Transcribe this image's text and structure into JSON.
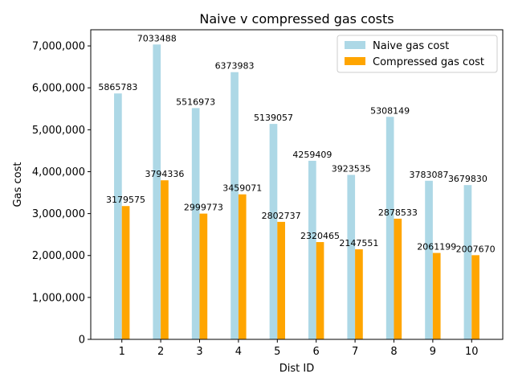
{
  "chart_data": {
    "type": "bar",
    "title": "Naive v compressed gas costs",
    "xlabel": "Dist ID",
    "ylabel": "Gas cost",
    "categories": [
      "1",
      "2",
      "3",
      "4",
      "5",
      "6",
      "7",
      "8",
      "9",
      "10"
    ],
    "series": [
      {
        "name": "Naive gas cost",
        "color": "#add8e6",
        "values": [
          5865783,
          7033488,
          5516973,
          6373983,
          5139057,
          4259409,
          3923535,
          5308149,
          3783087,
          3679830
        ],
        "labels": [
          "5865783",
          "7033488",
          "5516973",
          "6373983",
          "5139057",
          "4259409",
          "3923535",
          "5308149",
          "3783087",
          "3679830"
        ]
      },
      {
        "name": "Compressed gas cost",
        "color": "#ffa500",
        "values": [
          3179575,
          3794336,
          2999773,
          3459071,
          2802737,
          2320465,
          2147551,
          2878533,
          2061199,
          2007670
        ],
        "labels": [
          "3179575",
          "3794336",
          "2999773",
          "3459071",
          "2802737",
          "2320465",
          "2147551",
          "2878533",
          "2061199",
          "2007670"
        ]
      }
    ],
    "ylim": [
      0,
      7385162
    ],
    "yticks": [
      0,
      1000000,
      2000000,
      3000000,
      4000000,
      5000000,
      6000000,
      7000000
    ],
    "ytick_labels": [
      "0",
      "1,000,000",
      "2,000,000",
      "3,000,000",
      "4,000,000",
      "5,000,000",
      "6,000,000",
      "7,000,000"
    ],
    "grid": false,
    "legend_position": "top-right"
  }
}
